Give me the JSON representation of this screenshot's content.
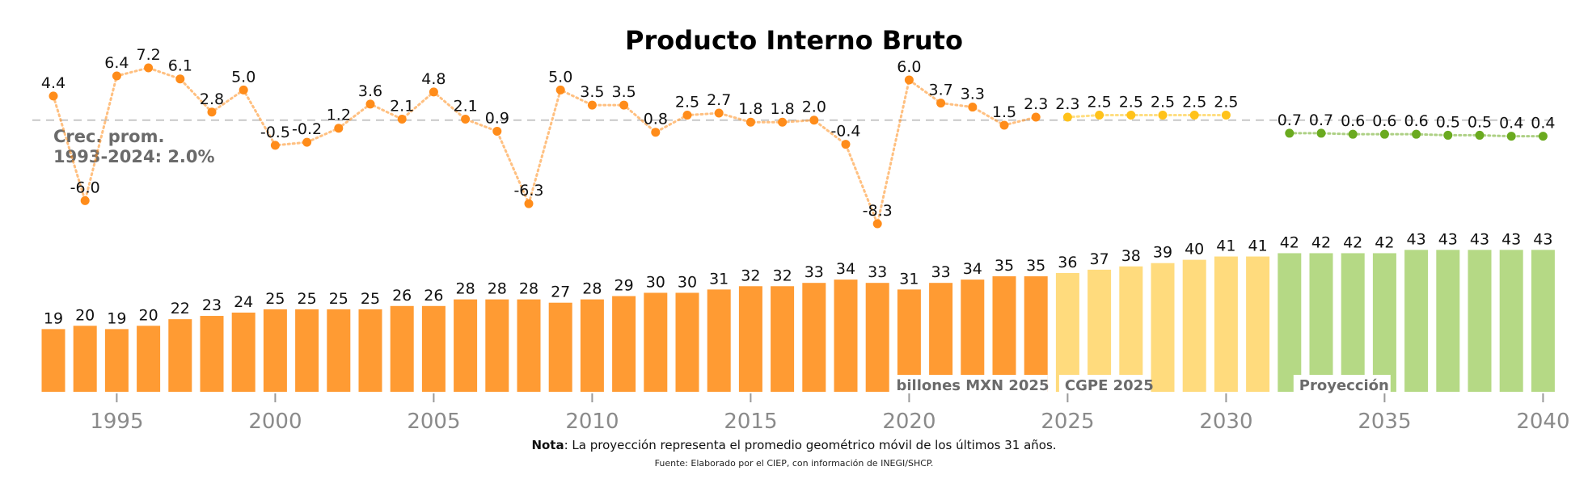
{
  "chart_data": {
    "type": "bar",
    "title": "Producto Interno Bruto",
    "x": [
      1993,
      1994,
      1995,
      1996,
      1997,
      1998,
      1999,
      2000,
      2001,
      2002,
      2003,
      2004,
      2005,
      2006,
      2007,
      2008,
      2009,
      2010,
      2011,
      2012,
      2013,
      2014,
      2015,
      2016,
      2017,
      2018,
      2019,
      2020,
      2021,
      2022,
      2023,
      2024,
      2025,
      2026,
      2027,
      2028,
      2029,
      2030,
      2031,
      2032,
      2033,
      2034,
      2035,
      2036,
      2037,
      2038,
      2039,
      2040
    ],
    "x_ticks": [
      1995,
      2000,
      2005,
      2010,
      2015,
      2020,
      2025,
      2030,
      2035,
      2040
    ],
    "series": [
      {
        "name": "billones MXN 2025",
        "kind": "bar",
        "x": [
          1993,
          1994,
          1995,
          1996,
          1997,
          1998,
          1999,
          2000,
          2001,
          2002,
          2003,
          2004,
          2005,
          2006,
          2007,
          2008,
          2009,
          2010,
          2011,
          2012,
          2013,
          2014,
          2015,
          2016,
          2017,
          2018,
          2019,
          2020,
          2021,
          2022,
          2023,
          2024
        ],
        "values": [
          19,
          20,
          19,
          20,
          22,
          23,
          24,
          25,
          25,
          25,
          25,
          26,
          26,
          28,
          28,
          28,
          27,
          28,
          29,
          30,
          30,
          31,
          32,
          32,
          33,
          34,
          33,
          31,
          33,
          34,
          35,
          35
        ],
        "color": "#ff9b33"
      },
      {
        "name": "CGPE 2025",
        "kind": "bar",
        "x": [
          2025,
          2026,
          2027,
          2028,
          2029,
          2030,
          2031
        ],
        "values": [
          36,
          37,
          38,
          39,
          40,
          41,
          41
        ],
        "color": "#ffdb7d"
      },
      {
        "name": "Proyección",
        "kind": "bar",
        "x": [
          2032,
          2033,
          2034,
          2035,
          2036,
          2037,
          2038,
          2039,
          2040
        ],
        "values": [
          42,
          42,
          42,
          42,
          43,
          43,
          43,
          43,
          43
        ],
        "color": "#b5d985"
      },
      {
        "kind": "line",
        "x": [
          1993,
          1994,
          1995,
          1996,
          1997,
          1998,
          1999,
          2000,
          2001,
          2002,
          2003,
          2004,
          2005,
          2006,
          2007,
          2008,
          2009,
          2010,
          2011,
          2012,
          2013,
          2014,
          2015,
          2016,
          2017,
          2018,
          2019,
          2020,
          2021,
          2022,
          2023,
          2024
        ],
        "values": [
          4.4,
          -6.0,
          6.4,
          7.2,
          6.1,
          2.8,
          5.0,
          -0.5,
          -0.2,
          1.2,
          3.6,
          2.1,
          4.8,
          2.1,
          0.9,
          -6.3,
          5.0,
          3.5,
          3.5,
          0.8,
          2.5,
          2.7,
          1.8,
          1.8,
          2.0,
          -0.4,
          -8.3,
          6.0,
          3.7,
          3.3,
          1.5,
          2.3
        ],
        "labels": [
          "4.4",
          "-6.0",
          "6.4",
          "7.2",
          "6.1",
          "2.8",
          "5.0",
          "-0.5",
          "-0.2",
          "1.2",
          "3.6",
          "2.1",
          "4.8",
          "2.1",
          "0.9",
          "-6.3",
          "5.0",
          "3.5",
          "3.5",
          "0.8",
          "2.5",
          "2.7",
          "1.8",
          "1.8",
          "2.0",
          "-0.4",
          "-8.3",
          "6.0",
          "3.7",
          "3.3",
          "1.5",
          "2.3"
        ],
        "color": "#ff8c1a"
      },
      {
        "kind": "line",
        "x": [
          2025,
          2026,
          2027,
          2028,
          2029,
          2030
        ],
        "values": [
          2.3,
          2.5,
          2.5,
          2.5,
          2.5,
          2.5
        ],
        "labels": [
          "2.3",
          "2.5",
          "2.5",
          "2.5",
          "2.5",
          "2.5"
        ],
        "color": "#ffc21a"
      },
      {
        "kind": "line",
        "x": [
          2032,
          2033,
          2034,
          2035,
          2036,
          2037,
          2038,
          2039,
          2040
        ],
        "values": [
          0.7,
          0.7,
          0.6,
          0.6,
          0.6,
          0.5,
          0.5,
          0.4,
          0.4
        ],
        "labels": [
          "0.7",
          "0.7",
          "0.6",
          "0.6",
          "0.6",
          "0.5",
          "0.5",
          "0.4",
          "0.4"
        ],
        "color": "#6aaa1f"
      }
    ],
    "reference_line": {
      "value": 2.0,
      "label_line1": "Crec. prom.",
      "label_line2": "1993-2024: 2.0%"
    },
    "segment_labels": [
      "billones MXN 2025",
      "CGPE 2025",
      "Proyección"
    ],
    "note_bold": "Nota",
    "note_text": ": La proyección representa el promedio geométrico móvil de los últimos 31 años.",
    "source": "Fuente: Elaborado por el CIEP, con información de INEGI/SHCP.",
    "bar_ylim": [
      0,
      43
    ],
    "growth_ylim": [
      -8.3,
      7.2
    ]
  }
}
